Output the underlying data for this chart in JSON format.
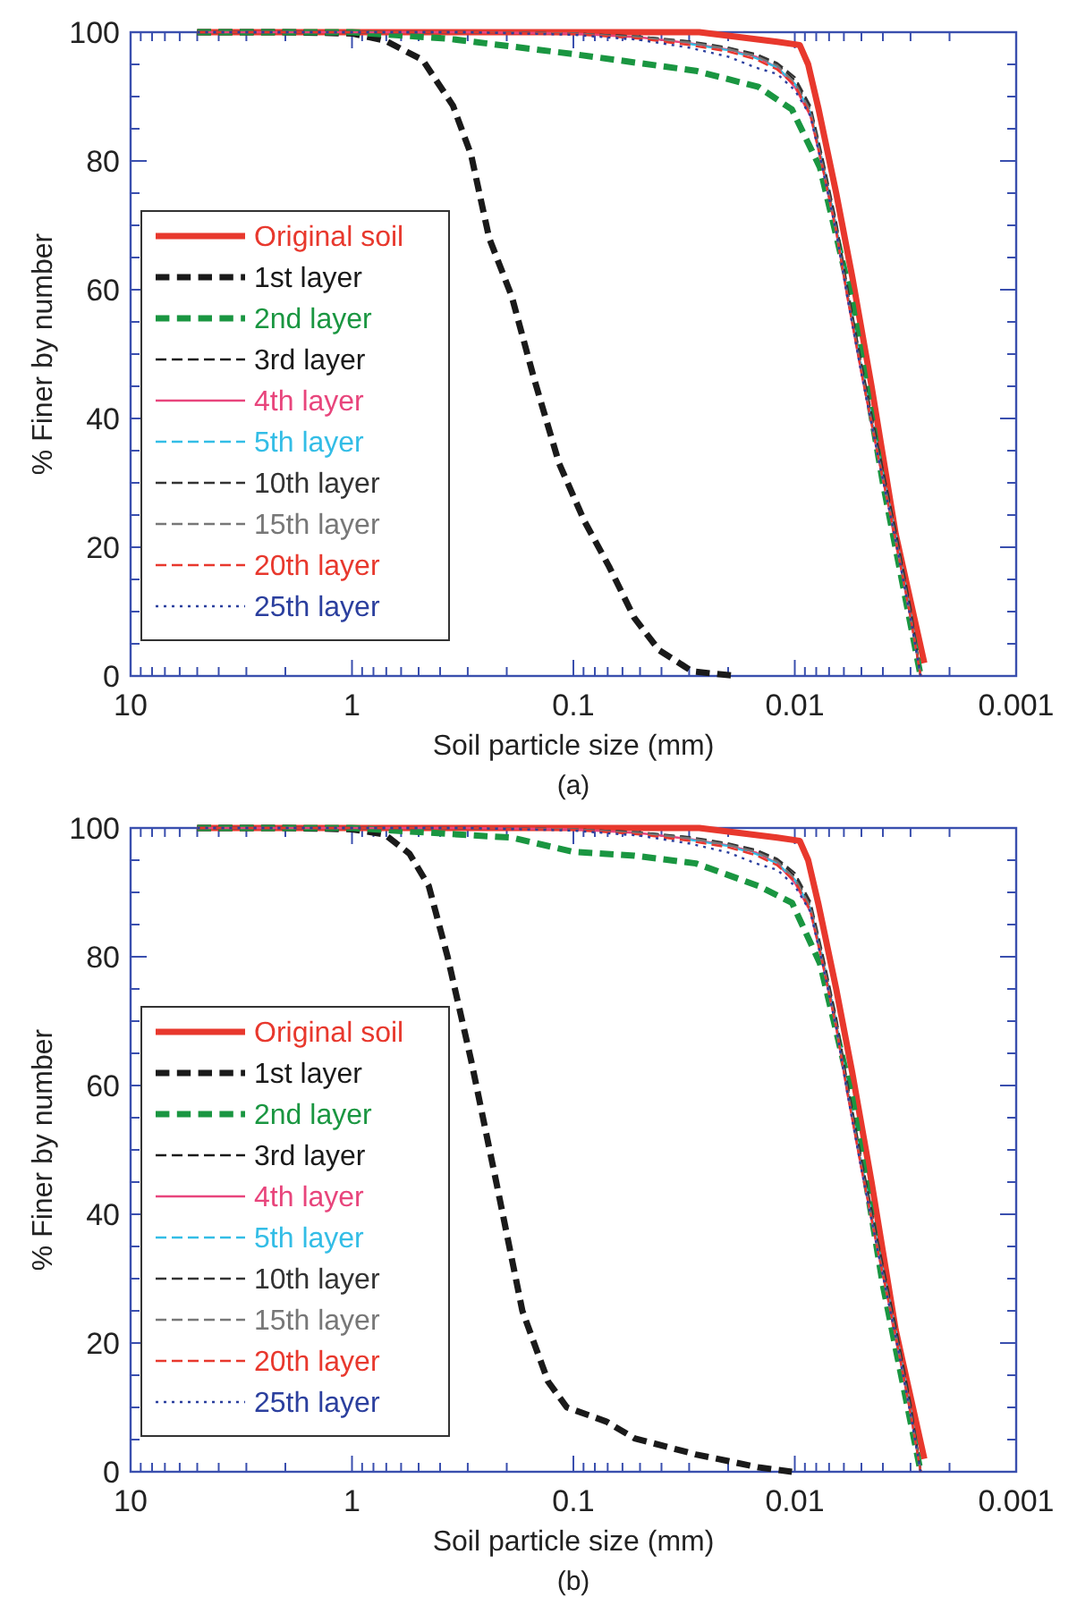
{
  "chart_data": [
    {
      "type": "line",
      "xlabel": "Soil particle size (mm)",
      "ylabel": "% Finer by number",
      "annotations": [
        "(a)"
      ],
      "log": "x",
      "legend": "left",
      "grid": false,
      "xlim": [
        10,
        0.001
      ],
      "xticks": [
        {
          "value": 10,
          "label": "10"
        },
        {
          "value": 9,
          "label": null
        },
        {
          "value": 8,
          "label": null
        },
        {
          "value": 7,
          "label": null
        },
        {
          "value": 6,
          "label": null
        },
        {
          "value": 5,
          "label": null
        },
        {
          "value": 4,
          "label": null
        },
        {
          "value": 3,
          "label": null
        },
        {
          "value": 2,
          "label": null
        },
        {
          "value": 1,
          "label": "1"
        },
        {
          "value": 0.9,
          "label": null
        },
        {
          "value": 0.8,
          "label": null
        },
        {
          "value": 0.7,
          "label": null
        },
        {
          "value": 0.6,
          "label": null
        },
        {
          "value": 0.5,
          "label": null
        },
        {
          "value": 0.4,
          "label": null
        },
        {
          "value": 0.3,
          "label": null
        },
        {
          "value": 0.2,
          "label": null
        },
        {
          "value": 0.1,
          "label": "0.1"
        },
        {
          "value": 0.09,
          "label": null
        },
        {
          "value": 0.08,
          "label": null
        },
        {
          "value": 0.07,
          "label": null
        },
        {
          "value": 0.06,
          "label": null
        },
        {
          "value": 0.05,
          "label": null
        },
        {
          "value": 0.04,
          "label": null
        },
        {
          "value": 0.03,
          "label": null
        },
        {
          "value": 0.02,
          "label": null
        },
        {
          "value": 0.01,
          "label": "0.01"
        },
        {
          "value": 0.009,
          "label": null
        },
        {
          "value": 0.008,
          "label": null
        },
        {
          "value": 0.007,
          "label": null
        },
        {
          "value": 0.006,
          "label": null
        },
        {
          "value": 0.005,
          "label": null
        },
        {
          "value": 0.004,
          "label": null
        },
        {
          "value": 0.003,
          "label": null
        },
        {
          "value": 0.002,
          "label": null
        },
        {
          "value": 0.001,
          "label": "0.001"
        }
      ],
      "ylim": [
        0,
        100
      ],
      "yticks": [
        0,
        {
          "value": 5,
          "label": null
        },
        {
          "value": 10,
          "label": null
        },
        {
          "value": 15,
          "label": null
        },
        20,
        {
          "value": 25,
          "label": null
        },
        {
          "value": 30,
          "label": null
        },
        {
          "value": 35,
          "label": null
        },
        40,
        {
          "value": 45,
          "label": null
        },
        {
          "value": 50,
          "label": null
        },
        {
          "value": 55,
          "label": null
        },
        60,
        {
          "value": 65,
          "label": null
        },
        {
          "value": 70,
          "label": null
        },
        {
          "value": 75,
          "label": null
        },
        80,
        {
          "value": 85,
          "label": null
        },
        {
          "value": 90,
          "label": null
        },
        {
          "value": 95,
          "label": null
        },
        100
      ],
      "series": [
        {
          "name": "Original soil",
          "color": "#e8382d",
          "line_style": "solid",
          "x": [
            5,
            0.1,
            0.027,
            0.012,
            0.0095,
            0.0087,
            0.0078,
            0.0065,
            0.0055,
            0.0045,
            0.0035,
            0.0026
          ],
          "values": [
            100,
            100,
            100,
            98.5,
            98,
            95,
            88,
            75,
            62,
            45,
            22,
            2
          ]
        },
        {
          "name": "1st layer",
          "color": "#1a1a1a",
          "line_style": "dashed",
          "x": [
            5,
            2,
            1,
            0.71,
            0.48,
            0.35,
            0.29,
            0.24,
            0.19,
            0.15,
            0.116,
            0.089,
            0.069,
            0.053,
            0.041,
            0.029,
            0.018
          ],
          "values": [
            100,
            100,
            99.8,
            98.7,
            95.7,
            88.6,
            81,
            68,
            59,
            46,
            33,
            24,
            17,
            9,
            4,
            0.7,
            0
          ]
        },
        {
          "name": "2nd layer",
          "color": "#1a9641",
          "line_style": "dashed",
          "x": [
            5,
            1,
            0.37,
            0.1,
            0.028,
            0.0146,
            0.0103,
            0.0077,
            0.0055,
            0.004,
            0.0027
          ],
          "values": [
            100,
            100,
            99,
            96.6,
            94,
            91.5,
            88,
            79,
            58,
            30,
            0
          ]
        },
        {
          "name": "3rd layer",
          "color": "#1a1a1a",
          "line_style": "dashed",
          "x": [
            5,
            0.3,
            0.1,
            0.05,
            0.03,
            0.02,
            0.015,
            0.012,
            0.01,
            0.0085,
            0.0075,
            0.0065,
            0.0058,
            0.005,
            0.0042,
            0.0035,
            0.003,
            0.0027
          ],
          "values": [
            100,
            100,
            99.8,
            99.3,
            98.5,
            97.5,
            96.5,
            95,
            92.5,
            88,
            80,
            70,
            60,
            48,
            35,
            22,
            10,
            0
          ]
        },
        {
          "name": "4th layer",
          "color": "#e8457c",
          "line_style": "solid",
          "x": [
            5,
            0.3,
            0.1,
            0.05,
            0.03,
            0.02,
            0.015,
            0.012,
            0.01,
            0.0085,
            0.0075,
            0.0065,
            0.0058,
            0.005,
            0.0042,
            0.0035,
            0.003,
            0.0027
          ],
          "values": [
            100,
            100,
            99.8,
            99.2,
            98.3,
            97.3,
            96.2,
            94.5,
            91.5,
            87,
            79,
            69,
            59,
            47,
            34,
            21,
            9,
            0
          ]
        },
        {
          "name": "5th layer",
          "color": "#33bde6",
          "line_style": "dashed",
          "x": [
            0.03,
            0.02,
            0.015,
            0.012,
            0.01,
            0.0085,
            0.0075,
            0.0065,
            0.0058,
            0.005,
            0.0042,
            0.0035,
            0.003,
            0.0027
          ],
          "values": [
            98.2,
            97.2,
            96,
            94.5,
            92,
            87.5,
            80,
            70,
            60,
            48,
            35,
            22,
            10,
            0
          ]
        },
        {
          "name": "10th layer",
          "color": "#333333",
          "line_style": "dashed",
          "x": [
            5,
            0.3,
            0.1,
            0.05,
            0.03,
            0.02,
            0.015,
            0.012,
            0.01,
            0.0085,
            0.0075,
            0.0065,
            0.0058,
            0.005,
            0.0042,
            0.0035,
            0.003,
            0.0027
          ],
          "values": [
            100,
            100,
            99.8,
            99.3,
            98.6,
            97.6,
            96.6,
            95.2,
            93,
            88.5,
            80.5,
            70.5,
            60.5,
            48.5,
            35.5,
            22.5,
            10.5,
            0
          ]
        },
        {
          "name": "15th layer",
          "color": "#777777",
          "line_style": "dashed",
          "x": [
            5,
            0.3,
            0.1,
            0.05,
            0.03,
            0.02,
            0.015,
            0.012,
            0.01,
            0.0085,
            0.0075,
            0.0065,
            0.0058,
            0.005,
            0.0042,
            0.0035,
            0.003,
            0.0027
          ],
          "values": [
            100,
            100,
            99.8,
            99.2,
            98.4,
            97.4,
            96.3,
            94.8,
            92.2,
            87.8,
            79.5,
            69.5,
            59.5,
            47.5,
            34.5,
            21.5,
            9.5,
            0
          ]
        },
        {
          "name": "20th layer",
          "color": "#e8382d",
          "line_style": "dashed",
          "x": [
            5,
            0.3,
            0.1,
            0.05,
            0.03,
            0.02,
            0.015,
            0.012,
            0.01,
            0.0085,
            0.0075,
            0.0065,
            0.0058,
            0.005,
            0.0042,
            0.0035,
            0.003,
            0.0027
          ],
          "values": [
            100,
            100,
            99.7,
            99,
            98,
            97,
            95.8,
            94.2,
            91.8,
            87.2,
            79.2,
            69.2,
            59.2,
            47.2,
            34.2,
            21.2,
            9.2,
            0
          ]
        },
        {
          "name": "25th layer",
          "color": "#2b3f9e",
          "line_style": "dotted",
          "x": [
            5,
            0.3,
            0.1,
            0.05,
            0.03,
            0.02,
            0.015,
            0.012,
            0.01,
            0.0085,
            0.0075,
            0.0065,
            0.0058,
            0.005,
            0.0042,
            0.0035,
            0.003,
            0.0027
          ],
          "values": [
            100,
            100,
            99.6,
            98.8,
            97.6,
            96.2,
            94.5,
            93.5,
            91,
            87,
            79,
            69,
            59,
            47,
            34,
            21,
            9,
            0
          ]
        }
      ]
    },
    {
      "type": "line",
      "xlabel": "Soil particle size (mm)",
      "ylabel": "% Finer by number",
      "annotations": [
        "(b)"
      ],
      "log": "x",
      "legend": "left",
      "grid": false,
      "xlim": [
        10,
        0.001
      ],
      "xticks": [
        {
          "value": 10,
          "label": "10"
        },
        {
          "value": 9,
          "label": null
        },
        {
          "value": 8,
          "label": null
        },
        {
          "value": 7,
          "label": null
        },
        {
          "value": 6,
          "label": null
        },
        {
          "value": 5,
          "label": null
        },
        {
          "value": 4,
          "label": null
        },
        {
          "value": 3,
          "label": null
        },
        {
          "value": 2,
          "label": null
        },
        {
          "value": 1,
          "label": "1"
        },
        {
          "value": 0.9,
          "label": null
        },
        {
          "value": 0.8,
          "label": null
        },
        {
          "value": 0.7,
          "label": null
        },
        {
          "value": 0.6,
          "label": null
        },
        {
          "value": 0.5,
          "label": null
        },
        {
          "value": 0.4,
          "label": null
        },
        {
          "value": 0.3,
          "label": null
        },
        {
          "value": 0.2,
          "label": null
        },
        {
          "value": 0.1,
          "label": "0.1"
        },
        {
          "value": 0.09,
          "label": null
        },
        {
          "value": 0.08,
          "label": null
        },
        {
          "value": 0.07,
          "label": null
        },
        {
          "value": 0.06,
          "label": null
        },
        {
          "value": 0.05,
          "label": null
        },
        {
          "value": 0.04,
          "label": null
        },
        {
          "value": 0.03,
          "label": null
        },
        {
          "value": 0.02,
          "label": null
        },
        {
          "value": 0.01,
          "label": "0.01"
        },
        {
          "value": 0.009,
          "label": null
        },
        {
          "value": 0.008,
          "label": null
        },
        {
          "value": 0.007,
          "label": null
        },
        {
          "value": 0.006,
          "label": null
        },
        {
          "value": 0.005,
          "label": null
        },
        {
          "value": 0.004,
          "label": null
        },
        {
          "value": 0.003,
          "label": null
        },
        {
          "value": 0.002,
          "label": null
        },
        {
          "value": 0.001,
          "label": "0.001"
        }
      ],
      "ylim": [
        0,
        100
      ],
      "yticks": [
        0,
        {
          "value": 5,
          "label": null
        },
        {
          "value": 10,
          "label": null
        },
        {
          "value": 15,
          "label": null
        },
        20,
        {
          "value": 25,
          "label": null
        },
        {
          "value": 30,
          "label": null
        },
        {
          "value": 35,
          "label": null
        },
        40,
        {
          "value": 45,
          "label": null
        },
        {
          "value": 50,
          "label": null
        },
        {
          "value": 55,
          "label": null
        },
        60,
        {
          "value": 65,
          "label": null
        },
        {
          "value": 70,
          "label": null
        },
        {
          "value": 75,
          "label": null
        },
        80,
        {
          "value": 85,
          "label": null
        },
        {
          "value": 90,
          "label": null
        },
        {
          "value": 95,
          "label": null
        },
        100
      ],
      "series": [
        {
          "name": "Original soil",
          "color": "#e8382d",
          "line_style": "solid",
          "x": [
            5,
            0.1,
            0.027,
            0.012,
            0.0095,
            0.0087,
            0.0078,
            0.0065,
            0.0055,
            0.0045,
            0.0035,
            0.0026
          ],
          "values": [
            100,
            100,
            100,
            98.5,
            98,
            95,
            88,
            75,
            62,
            45,
            22,
            2
          ]
        },
        {
          "name": "1st layer",
          "color": "#1a1a1a",
          "line_style": "dashed",
          "x": [
            5,
            2,
            1,
            0.71,
            0.55,
            0.45,
            0.37,
            0.29,
            0.22,
            0.17,
            0.13,
            0.107,
            0.071,
            0.053,
            0.028,
            0.0146,
            0.0103
          ],
          "values": [
            100,
            100,
            99.8,
            99,
            96,
            91,
            80,
            64,
            44,
            25,
            14,
            10,
            7.8,
            5.2,
            2.7,
            0.7,
            0
          ]
        },
        {
          "name": "2nd layer",
          "color": "#1a9641",
          "line_style": "dashed",
          "x": [
            5,
            1,
            0.19,
            0.1,
            0.053,
            0.028,
            0.0146,
            0.0103,
            0.0077,
            0.0055,
            0.004,
            0.0027
          ],
          "values": [
            100,
            100,
            98.5,
            96.3,
            95.7,
            94.5,
            91,
            88.4,
            79,
            58,
            29,
            0
          ]
        },
        {
          "name": "3rd layer",
          "color": "#1a1a1a",
          "line_style": "dashed",
          "x": [
            5,
            0.3,
            0.1,
            0.05,
            0.03,
            0.02,
            0.015,
            0.012,
            0.01,
            0.0085,
            0.0075,
            0.0065,
            0.0058,
            0.005,
            0.0042,
            0.0035,
            0.003,
            0.0027
          ],
          "values": [
            100,
            100,
            99.8,
            99.3,
            98.5,
            97.5,
            96.5,
            95,
            92.5,
            88,
            80,
            70,
            60,
            48,
            35,
            22,
            10,
            0
          ]
        },
        {
          "name": "4th layer",
          "color": "#e8457c",
          "line_style": "solid",
          "x": [
            5,
            0.3,
            0.1,
            0.05,
            0.03,
            0.02,
            0.015,
            0.012,
            0.01,
            0.0085,
            0.0075,
            0.0065,
            0.0058,
            0.005,
            0.0042,
            0.0035,
            0.003,
            0.0027
          ],
          "values": [
            100,
            100,
            99.8,
            99.2,
            98.3,
            97.3,
            96.2,
            94.5,
            91.5,
            87,
            79,
            69,
            59,
            47,
            34,
            21,
            9,
            0
          ]
        },
        {
          "name": "5th layer",
          "color": "#33bde6",
          "line_style": "dashed",
          "x": [
            0.03,
            0.02,
            0.015,
            0.012,
            0.01,
            0.0085,
            0.0075,
            0.0065,
            0.0058,
            0.005,
            0.0042,
            0.0035,
            0.003,
            0.0027
          ],
          "values": [
            98.2,
            97.2,
            96,
            94.5,
            92,
            87.5,
            80,
            70,
            60,
            48,
            35,
            22,
            10,
            0
          ]
        },
        {
          "name": "10th layer",
          "color": "#333333",
          "line_style": "dashed",
          "x": [
            5,
            0.3,
            0.1,
            0.05,
            0.03,
            0.02,
            0.015,
            0.012,
            0.01,
            0.0085,
            0.0075,
            0.0065,
            0.0058,
            0.005,
            0.0042,
            0.0035,
            0.003,
            0.0027
          ],
          "values": [
            100,
            100,
            99.8,
            99.3,
            98.6,
            97.6,
            96.6,
            95.2,
            93,
            88.5,
            80.5,
            70.5,
            60.5,
            48.5,
            35.5,
            22.5,
            10.5,
            0
          ]
        },
        {
          "name": "15th layer",
          "color": "#777777",
          "line_style": "dashed",
          "x": [
            5,
            0.3,
            0.1,
            0.05,
            0.03,
            0.02,
            0.015,
            0.012,
            0.01,
            0.0085,
            0.0075,
            0.0065,
            0.0058,
            0.005,
            0.0042,
            0.0035,
            0.003,
            0.0027
          ],
          "values": [
            100,
            100,
            99.8,
            99.2,
            98.4,
            97.4,
            96.3,
            94.8,
            92.2,
            87.8,
            79.5,
            69.5,
            59.5,
            47.5,
            34.5,
            21.5,
            9.5,
            0
          ]
        },
        {
          "name": "20th layer",
          "color": "#e8382d",
          "line_style": "dashed",
          "x": [
            5,
            0.3,
            0.1,
            0.05,
            0.03,
            0.02,
            0.015,
            0.012,
            0.01,
            0.0085,
            0.0075,
            0.0065,
            0.0058,
            0.005,
            0.0042,
            0.0035,
            0.003,
            0.0027
          ],
          "values": [
            100,
            100,
            99.7,
            99,
            98,
            97,
            95.8,
            94.2,
            91.8,
            87.2,
            79.2,
            69.2,
            59.2,
            47.2,
            34.2,
            21.2,
            9.2,
            0
          ]
        },
        {
          "name": "25th layer",
          "color": "#2b3f9e",
          "line_style": "dotted",
          "x": [
            5,
            0.3,
            0.1,
            0.05,
            0.03,
            0.02,
            0.015,
            0.012,
            0.01,
            0.0085,
            0.0075,
            0.0065,
            0.0058,
            0.005,
            0.0042,
            0.0035,
            0.003,
            0.0027
          ],
          "values": [
            100,
            100,
            99.6,
            98.8,
            97.6,
            96.2,
            94.5,
            93.5,
            91,
            87,
            79,
            69,
            59,
            47,
            34,
            21,
            9,
            0
          ]
        }
      ]
    }
  ]
}
